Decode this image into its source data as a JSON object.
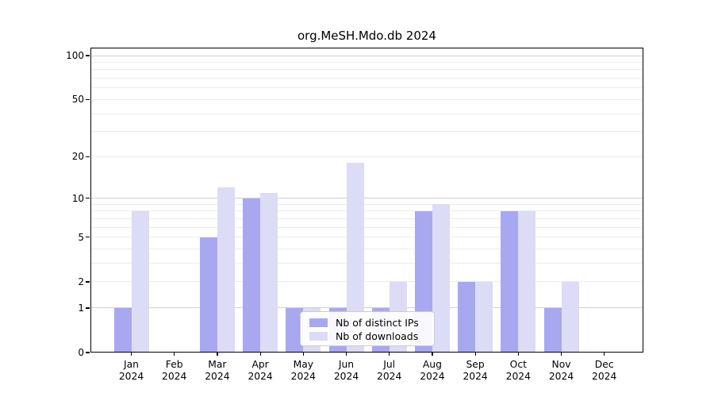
{
  "chart_data": {
    "type": "bar",
    "title": "org.MeSH.Mdo.db 2024",
    "months": [
      "Jan",
      "Feb",
      "Mar",
      "Apr",
      "May",
      "Jun",
      "Jul",
      "Aug",
      "Sep",
      "Oct",
      "Nov",
      "Dec"
    ],
    "year_label": "2024",
    "series": [
      {
        "name": "Nb of distinct IPs",
        "color": "#a8a8f0",
        "values": [
          1,
          0,
          5,
          10,
          1,
          1,
          1,
          8,
          2,
          8,
          1,
          0
        ]
      },
      {
        "name": "Nb of downloads",
        "color": "#dcdcf6",
        "values": [
          8,
          0,
          12,
          11,
          1,
          18,
          2,
          9,
          2,
          8,
          2,
          0
        ]
      }
    ],
    "y_ticks": [
      100,
      50,
      20,
      10,
      5,
      2,
      1,
      0
    ],
    "y_minor_gridlines": [
      2,
      3,
      4,
      5,
      6,
      7,
      8,
      9,
      20,
      30,
      40,
      50,
      60,
      70,
      80,
      90
    ],
    "y_major_gridlines": [
      1,
      10,
      100
    ],
    "ylim": [
      0,
      100
    ],
    "yscale": "log1p",
    "grid": "horizontal",
    "legend_position": "inside-bottom-center",
    "colors": {
      "background": "#ffffff",
      "axis": "#000000",
      "grid_minor": "#ececec",
      "grid_major": "#d0d0d0",
      "legend_border": "#cccccc"
    }
  }
}
